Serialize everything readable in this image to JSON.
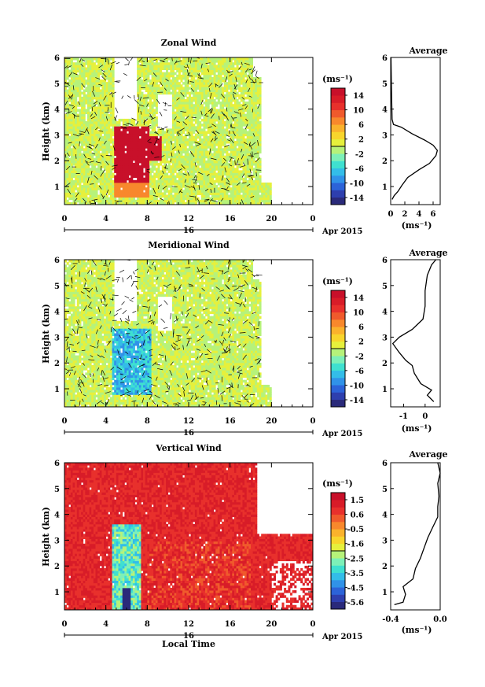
{
  "chart_data": [
    {
      "type": "heatmap",
      "title": "Zonal Wind",
      "ylabel": "Height (km)",
      "xlim": [
        0,
        24
      ],
      "ylim": [
        0.3,
        6
      ],
      "x_ticks": [
        "0",
        "4",
        "8",
        "12",
        "16",
        "20",
        "0"
      ],
      "y_ticks": [
        "1",
        "2",
        "3",
        "4",
        "5",
        "6"
      ],
      "day_label": "16",
      "date_label": "Apr 2015",
      "colorbar": {
        "label": "(ms⁻¹)",
        "ticks": [
          "14",
          "10",
          "6",
          "2",
          "-2",
          "-6",
          "-10",
          "-14"
        ],
        "range": [
          -16,
          16
        ],
        "colors": [
          "#2a2a7a",
          "#2e3fae",
          "#2c63d8",
          "#3092e8",
          "#33bde8",
          "#3fe0d0",
          "#7df0b8",
          "#b6f27a",
          "#e6f03c",
          "#f8d52c",
          "#fab22c",
          "#f8882c",
          "#f05a2c",
          "#e8302c",
          "#d81c28",
          "#c8102a"
        ]
      },
      "average_panel": {
        "title": "Average",
        "xlabel": "(ms⁻¹)",
        "x_ticks": [
          "0",
          "2",
          "4",
          "6"
        ],
        "xlim": [
          0,
          7
        ],
        "profile": [
          [
            0.2,
            0.5
          ],
          [
            0.5,
            0.65
          ],
          [
            1.0,
            0.8
          ],
          [
            1.6,
            1.05
          ],
          [
            2.4,
            1.35
          ],
          [
            4.0,
            1.65
          ],
          [
            5.5,
            1.9
          ],
          [
            6.4,
            2.2
          ],
          [
            6.6,
            2.4
          ],
          [
            6.0,
            2.6
          ],
          [
            4.8,
            2.8
          ],
          [
            3.0,
            3.05
          ],
          [
            1.5,
            3.3
          ],
          [
            0.4,
            3.4
          ],
          [
            0.2,
            3.6
          ],
          [
            0.15,
            4.2
          ],
          [
            0.1,
            5.0
          ],
          [
            0.05,
            6.0
          ]
        ]
      }
    },
    {
      "type": "heatmap",
      "title": "Meridional Wind",
      "ylabel": "Height (km)",
      "xlim": [
        0,
        24
      ],
      "ylim": [
        0.3,
        6
      ],
      "x_ticks": [
        "0",
        "4",
        "8",
        "12",
        "16",
        "20",
        "0"
      ],
      "y_ticks": [
        "1",
        "2",
        "3",
        "4",
        "5",
        "6"
      ],
      "day_label": "16",
      "date_label": "Apr 2015",
      "colorbar": {
        "label": "(ms⁻¹)",
        "ticks": [
          "14",
          "10",
          "6",
          "2",
          "-2",
          "-6",
          "-10",
          "-14"
        ],
        "range": [
          -16,
          16
        ],
        "colors": [
          "#2a2a7a",
          "#2e3fae",
          "#2c63d8",
          "#3092e8",
          "#33bde8",
          "#3fe0d0",
          "#7df0b8",
          "#b6f27a",
          "#e6f03c",
          "#f8d52c",
          "#fab22c",
          "#f8882c",
          "#f05a2c",
          "#e8302c",
          "#d81c28",
          "#c8102a"
        ]
      },
      "average_panel": {
        "title": "Average",
        "xlabel": "(ms⁻¹)",
        "x_ticks": [
          "-1",
          "0"
        ],
        "xlim": [
          -1.6,
          0.7
        ],
        "profile": [
          [
            0.4,
            0.5
          ],
          [
            0.1,
            0.75
          ],
          [
            0.3,
            0.95
          ],
          [
            -0.2,
            1.2
          ],
          [
            -0.5,
            1.6
          ],
          [
            -0.6,
            1.9
          ],
          [
            -0.9,
            2.1
          ],
          [
            -1.2,
            2.4
          ],
          [
            -1.5,
            2.75
          ],
          [
            -1.2,
            3.0
          ],
          [
            -0.6,
            3.3
          ],
          [
            -0.1,
            3.7
          ],
          [
            0.0,
            4.2
          ],
          [
            0.0,
            4.8
          ],
          [
            0.1,
            5.4
          ],
          [
            0.3,
            5.8
          ],
          [
            0.5,
            6.0
          ]
        ]
      }
    },
    {
      "type": "heatmap",
      "title": "Vertical Wind",
      "xlabel": "Local Time",
      "ylabel": "Height (km)",
      "xlim": [
        0,
        24
      ],
      "ylim": [
        0.3,
        6
      ],
      "x_ticks": [
        "0",
        "4",
        "8",
        "12",
        "16",
        "20",
        "0"
      ],
      "y_ticks": [
        "1",
        "2",
        "3",
        "4",
        "5",
        "6"
      ],
      "day_label": "16",
      "date_label": "Apr 2015",
      "colorbar": {
        "label": "(ms⁻¹)",
        "ticks": [
          "1.5",
          "0.6",
          "-0.5",
          "-1.6",
          "-2.5",
          "-3.5",
          "-4.5",
          "-5.6"
        ],
        "range": [
          -6.0,
          2.0
        ],
        "colors": [
          "#2a2a7a",
          "#2e3fae",
          "#2c63d8",
          "#3092e8",
          "#33bde8",
          "#3fe0d0",
          "#7df0b8",
          "#b6f27a",
          "#e6f03c",
          "#f8d52c",
          "#fab22c",
          "#f8882c",
          "#f05a2c",
          "#e8302c",
          "#d81c28",
          "#c8102a"
        ]
      },
      "average_panel": {
        "title": "Average",
        "xlabel": "(ms⁻¹)",
        "x_ticks": [
          "-0.4",
          "0.0"
        ],
        "xlim": [
          -0.4,
          0.0
        ],
        "profile": [
          [
            -0.37,
            0.5
          ],
          [
            -0.3,
            0.6
          ],
          [
            -0.28,
            0.9
          ],
          [
            -0.3,
            1.2
          ],
          [
            -0.22,
            1.5
          ],
          [
            -0.2,
            1.9
          ],
          [
            -0.16,
            2.3
          ],
          [
            -0.13,
            2.7
          ],
          [
            -0.1,
            3.1
          ],
          [
            -0.06,
            3.5
          ],
          [
            -0.02,
            3.9
          ],
          [
            -0.02,
            4.3
          ],
          [
            -0.01,
            4.7
          ],
          [
            -0.02,
            5.2
          ],
          [
            0.0,
            5.6
          ],
          [
            -0.02,
            6.0
          ]
        ]
      }
    }
  ]
}
